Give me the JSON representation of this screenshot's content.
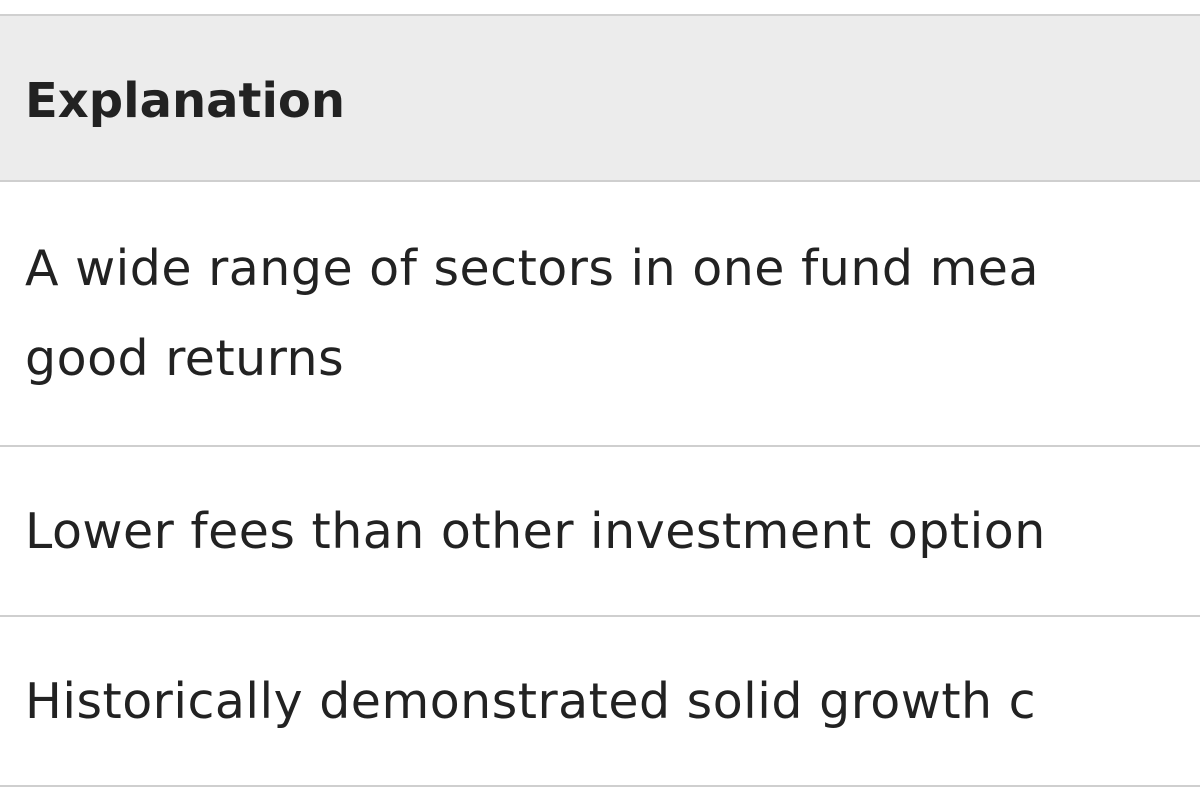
{
  "table": {
    "header": "Explanation",
    "rows": [
      {
        "line1": "A wide range of sectors in one fund mea",
        "line2": "good returns"
      },
      {
        "line1": "Lower fees than other investment option"
      },
      {
        "line1": "Historically demonstrated solid growth c"
      }
    ]
  }
}
